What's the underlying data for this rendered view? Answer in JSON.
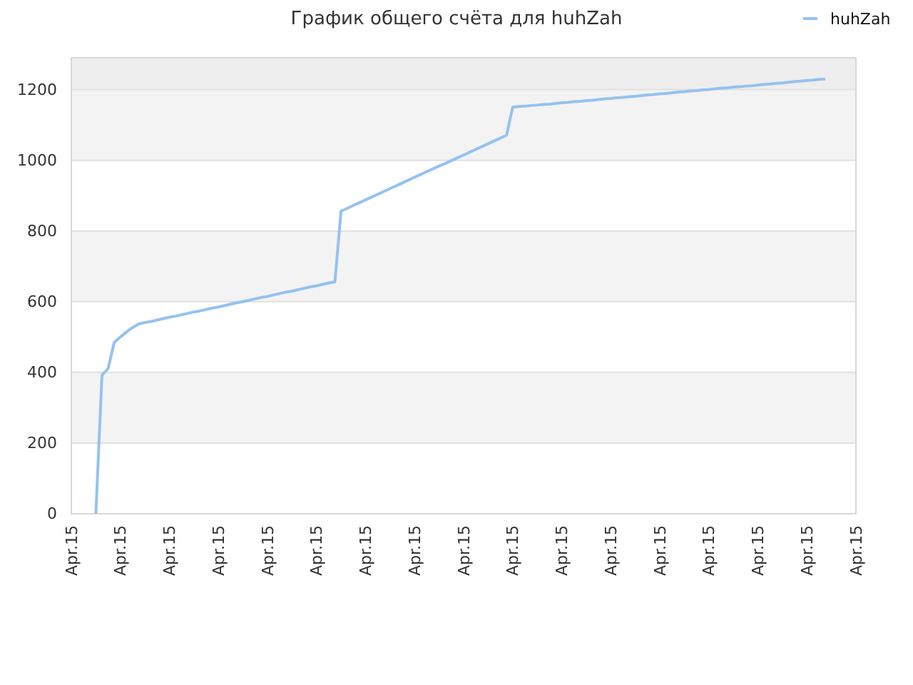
{
  "chart_data": {
    "type": "line",
    "title": "График общего счёта для huhZah",
    "categories": [
      "Apr.15",
      null,
      null,
      null,
      null,
      null,
      null,
      null,
      "Apr.15",
      null,
      null,
      null,
      null,
      null,
      null,
      null,
      "Apr.15",
      null,
      null,
      null,
      null,
      null,
      null,
      null,
      "Apr.15",
      null,
      null,
      null,
      null,
      null,
      null,
      null,
      "Apr.15",
      null,
      null,
      null,
      null,
      null,
      null,
      null,
      "Apr.15",
      null,
      null,
      null,
      null,
      null,
      null,
      null,
      "Apr.15",
      null,
      null,
      null,
      null,
      null,
      null,
      null,
      "Apr.15",
      null,
      null,
      null,
      null,
      null,
      null,
      null,
      "Apr.15",
      null,
      null,
      null,
      null,
      null,
      null,
      null,
      "Apr.15",
      null,
      null,
      null,
      null,
      null,
      null,
      null,
      "Apr.15",
      null,
      null,
      null,
      null,
      null,
      null,
      null,
      "Apr.15",
      null,
      null,
      null,
      null,
      null,
      null,
      null,
      "Apr.15",
      null,
      null,
      null,
      null,
      null,
      null,
      null,
      "Apr.15",
      null,
      null,
      null,
      null,
      null,
      null,
      null,
      "Apr.15",
      null,
      null,
      null,
      null,
      null,
      null,
      null,
      "Apr.15",
      null,
      null,
      null,
      null,
      null,
      null,
      null,
      "Apr.15"
    ],
    "series": [
      {
        "name": "huhZah",
        "color": "#94c2f0",
        "values": [
          null,
          null,
          null,
          null,
          0,
          392,
          411,
          485,
          500,
          514,
          527,
          537,
          541,
          544,
          548,
          552,
          556,
          559,
          563,
          567,
          571,
          574,
          578,
          582,
          585,
          589,
          593,
          597,
          600,
          604,
          608,
          612,
          615,
          619,
          623,
          627,
          630,
          634,
          638,
          642,
          645,
          649,
          653,
          656,
          856,
          864,
          872,
          880,
          888,
          896,
          904,
          912,
          920,
          928,
          936,
          944,
          952,
          960,
          968,
          976,
          984,
          991,
          999,
          1007,
          1015,
          1023,
          1031,
          1039,
          1047,
          1055,
          1063,
          1071,
          1150,
          1152,
          1153,
          1155,
          1156,
          1158,
          1159,
          1161,
          1163,
          1164,
          1166,
          1167,
          1169,
          1170,
          1172,
          1174,
          1175,
          1177,
          1178,
          1180,
          1181,
          1183,
          1185,
          1186,
          1188,
          1189,
          1191,
          1193,
          1194,
          1196,
          1197,
          1199,
          1200,
          1202,
          1204,
          1205,
          1207,
          1208,
          1210,
          1211,
          1213,
          1215,
          1216,
          1218,
          1219,
          1221,
          1223,
          1224,
          1226,
          1227,
          1229,
          1230,
          null,
          null,
          null,
          null,
          null
        ]
      }
    ],
    "ylim": [
      0,
      1290
    ],
    "yticks": [
      0,
      200,
      400,
      600,
      800,
      1000,
      1200
    ],
    "bands": [
      {
        "axis": "y",
        "from": 1200,
        "to": 1290,
        "color": "#eeeeee"
      }
    ],
    "grid": "y",
    "legend": "top right",
    "marker": "none",
    "line_style": "solid"
  }
}
